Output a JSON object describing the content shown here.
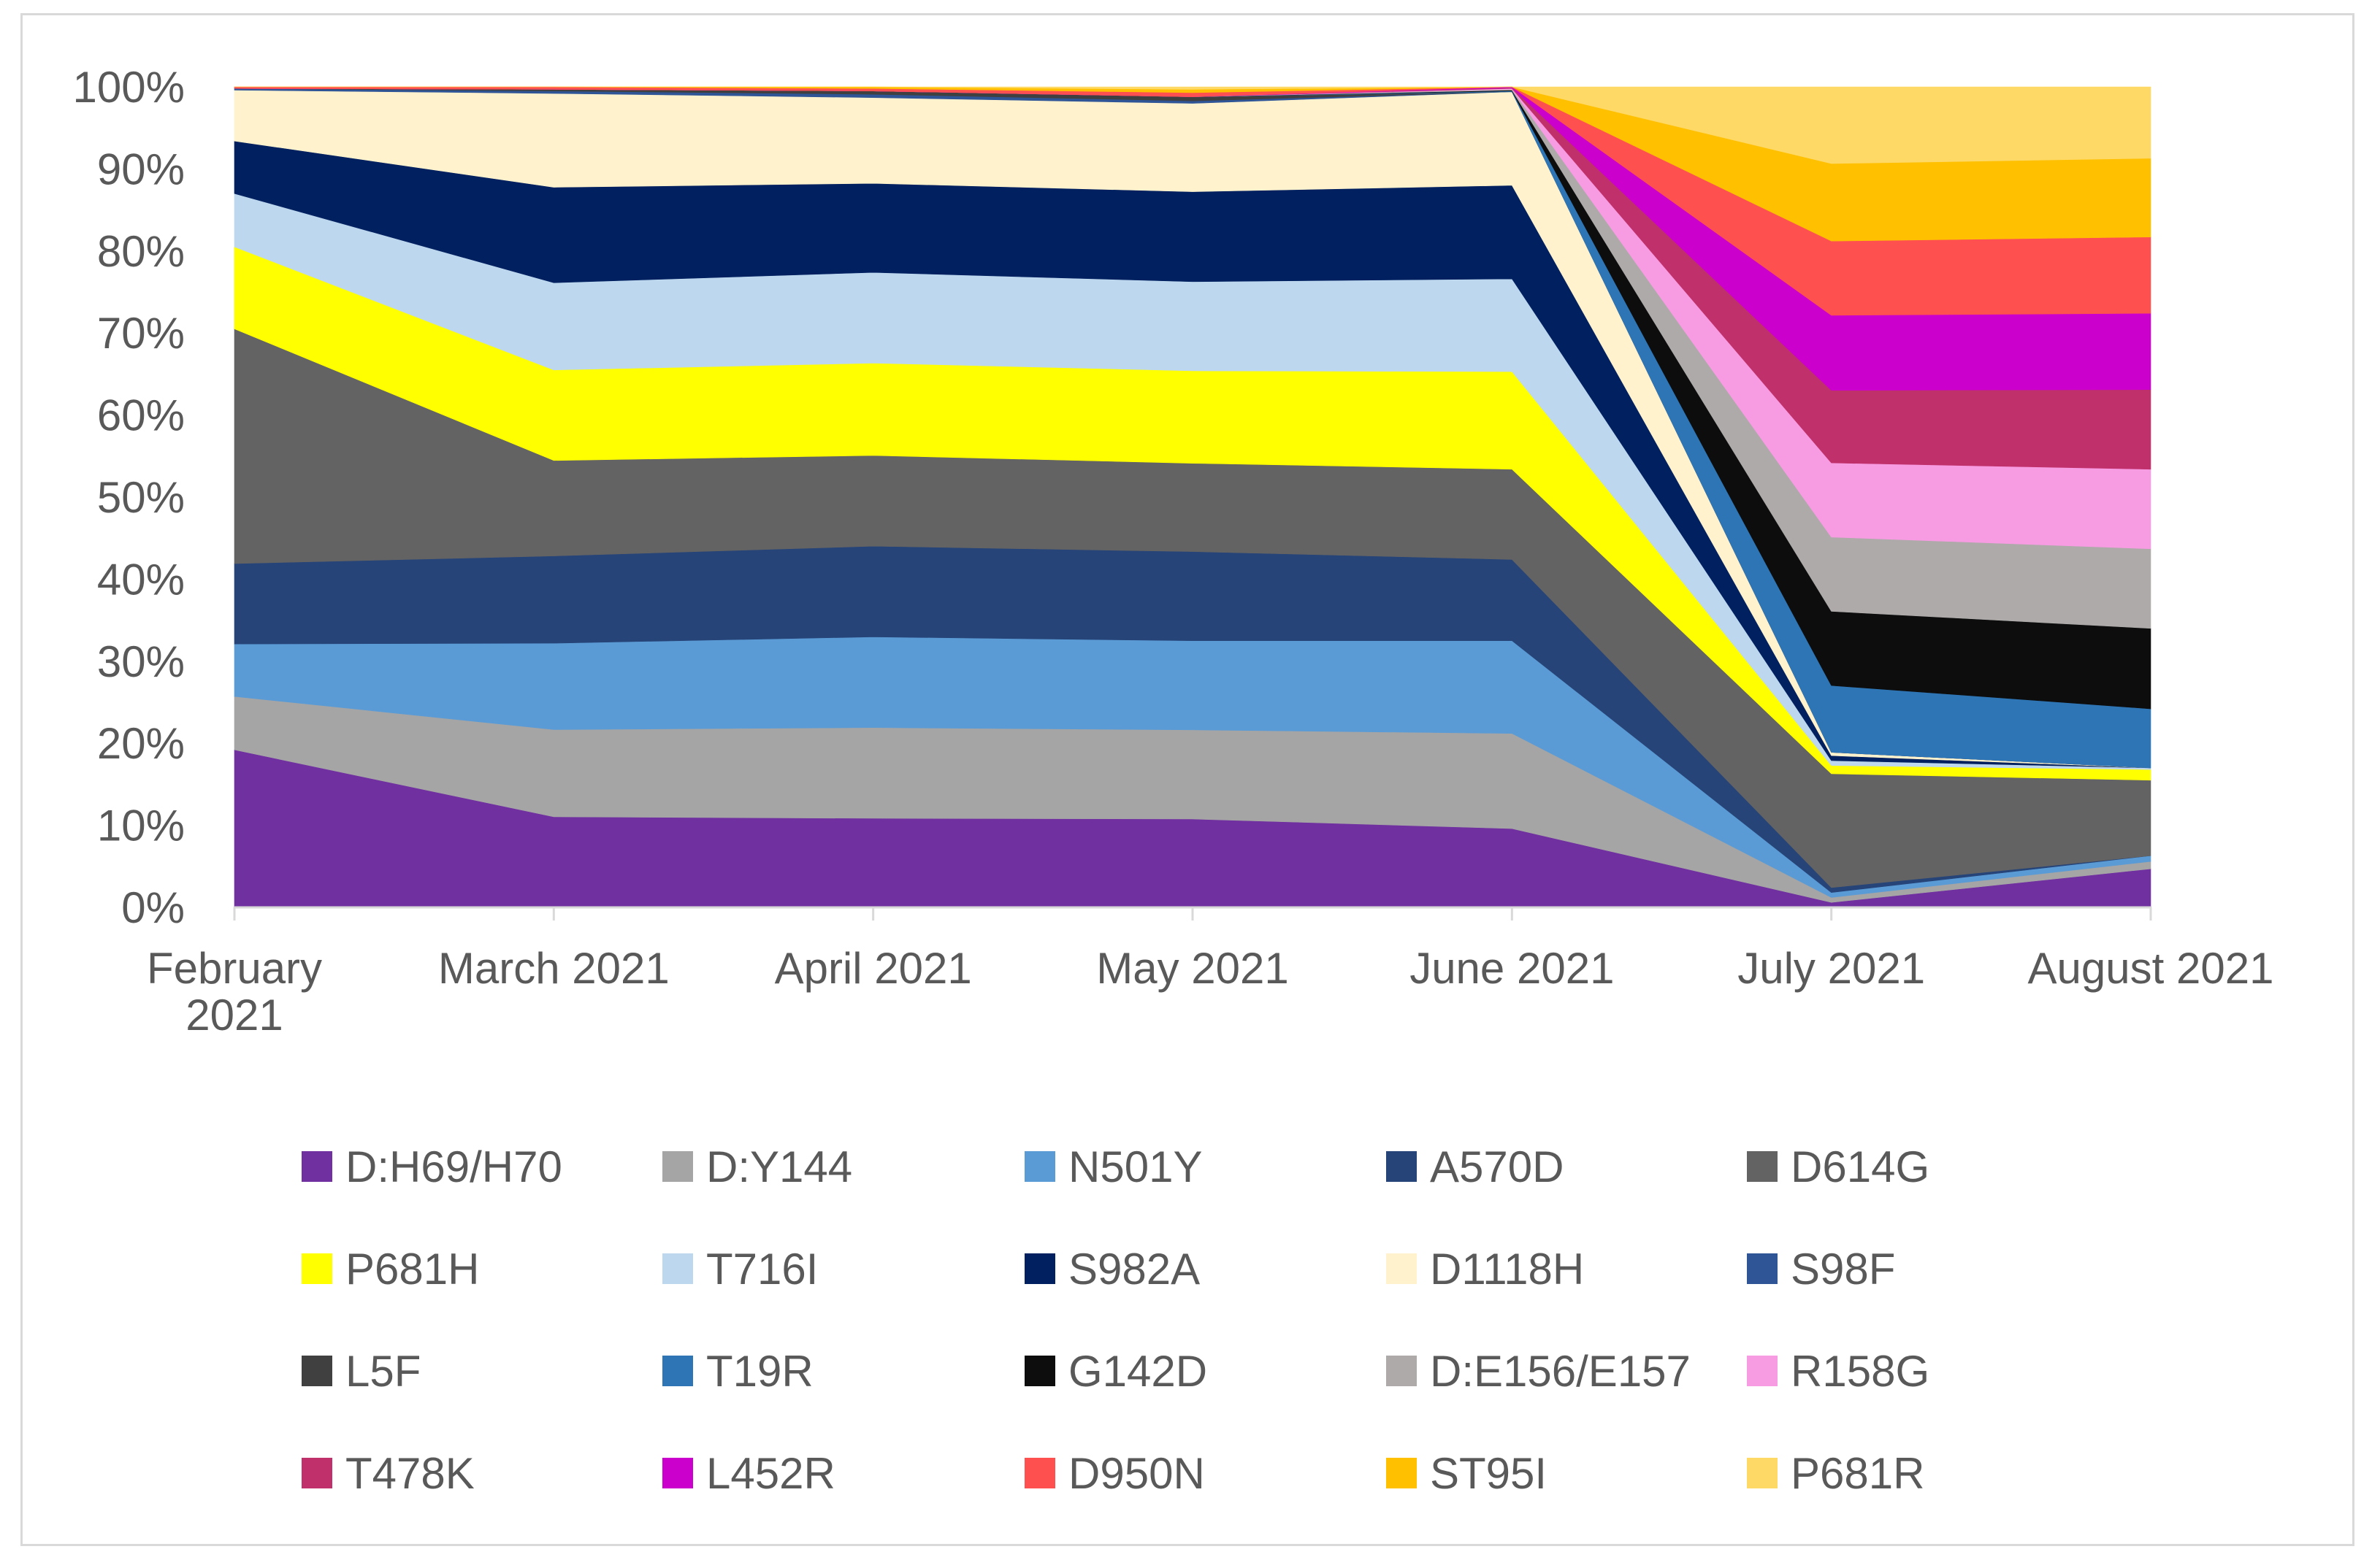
{
  "chart_data": {
    "type": "area",
    "stacked": true,
    "percent": true,
    "title": "",
    "xlabel": "",
    "ylabel": "",
    "ylim": [
      0,
      100
    ],
    "yticks": [
      "0%",
      "10%",
      "20%",
      "30%",
      "40%",
      "50%",
      "60%",
      "70%",
      "80%",
      "90%",
      "100%"
    ],
    "categories": [
      [
        "February",
        "2021"
      ],
      [
        "March 2021"
      ],
      [
        "April 2021"
      ],
      [
        "May 2021"
      ],
      [
        "June 2021"
      ],
      [
        "July 2021"
      ],
      [
        "August 2021"
      ]
    ],
    "legend_position": "bottom",
    "series": [
      {
        "name": "D:H69/H70",
        "color": "#7030a0",
        "values": [
          19.2,
          11.0,
          10.8,
          10.7,
          9.6,
          0.6,
          4.7
        ]
      },
      {
        "name": "D:Y144",
        "color": "#a5a5a5",
        "values": [
          6.5,
          10.6,
          11.0,
          10.8,
          11.6,
          0.6,
          0.9
        ]
      },
      {
        "name": "N501Y",
        "color": "#5b9bd5",
        "values": [
          6.4,
          10.5,
          11.0,
          10.8,
          11.3,
          0.6,
          0.7
        ]
      },
      {
        "name": "A570D",
        "color": "#264478",
        "values": [
          9.8,
          10.6,
          11.0,
          10.8,
          9.9,
          0.6,
          0.0
        ]
      },
      {
        "name": "D614G",
        "color": "#636363",
        "values": [
          28.6,
          11.6,
          11.0,
          10.7,
          11.0,
          13.8,
          9.2
        ]
      },
      {
        "name": "P681H",
        "color": "#ffff00",
        "values": [
          10.0,
          11.0,
          11.2,
          11.2,
          11.9,
          1.0,
          1.3
        ]
      },
      {
        "name": "T716I",
        "color": "#bdd7ee",
        "values": [
          6.5,
          10.6,
          11.0,
          10.8,
          11.3,
          0.6,
          0.2
        ]
      },
      {
        "name": "S982A",
        "color": "#002060",
        "values": [
          6.4,
          11.6,
          10.8,
          10.9,
          11.4,
          0.6,
          0.0
        ]
      },
      {
        "name": "D1118H",
        "color": "#fff2cc",
        "values": [
          6.2,
          11.4,
          10.4,
          10.7,
          11.4,
          0.4,
          0.0
        ]
      },
      {
        "name": "S98F",
        "color": "#2f5597",
        "values": [
          0.2,
          0.3,
          0.4,
          0.3,
          0.0,
          0.0,
          0.0
        ]
      },
      {
        "name": "L5F",
        "color": "#404040",
        "values": [
          0.0,
          0.2,
          0.4,
          0.5,
          0.0,
          0.0,
          0.0
        ]
      },
      {
        "name": "T19R",
        "color": "#2e75b6",
        "values": [
          0.0,
          0.0,
          0.0,
          0.0,
          0.1,
          8.1,
          7.2
        ]
      },
      {
        "name": "G142D",
        "color": "#0d0d0d",
        "values": [
          0.0,
          0.0,
          0.0,
          0.0,
          0.1,
          9.0,
          9.8
        ]
      },
      {
        "name": "D:E156/E157",
        "color": "#aeaaaa",
        "values": [
          0.0,
          0.0,
          0.0,
          0.0,
          0.1,
          9.0,
          9.7
        ]
      },
      {
        "name": "R158G",
        "color": "#f79be2",
        "values": [
          0.0,
          0.0,
          0.0,
          0.0,
          0.1,
          9.0,
          9.7
        ]
      },
      {
        "name": "T478K",
        "color": "#c0306a",
        "values": [
          0.0,
          0.0,
          0.0,
          0.0,
          0.1,
          8.8,
          9.7
        ]
      },
      {
        "name": "L452R",
        "color": "#cc00cc",
        "values": [
          0.0,
          0.0,
          0.0,
          0.0,
          0.1,
          9.1,
          9.3
        ]
      },
      {
        "name": "D950N",
        "color": "#ff5050",
        "values": [
          0.2,
          0.3,
          0.3,
          0.5,
          0.0,
          9.0,
          9.3
        ]
      },
      {
        "name": "ST95I",
        "color": "#ffc000",
        "values": [
          0.0,
          0.0,
          0.2,
          0.4,
          0.0,
          9.4,
          9.6
        ]
      },
      {
        "name": "P681R",
        "color": "#ffd966",
        "values": [
          0.0,
          0.0,
          0.0,
          0.3,
          0.0,
          9.3,
          8.7
        ]
      }
    ]
  }
}
